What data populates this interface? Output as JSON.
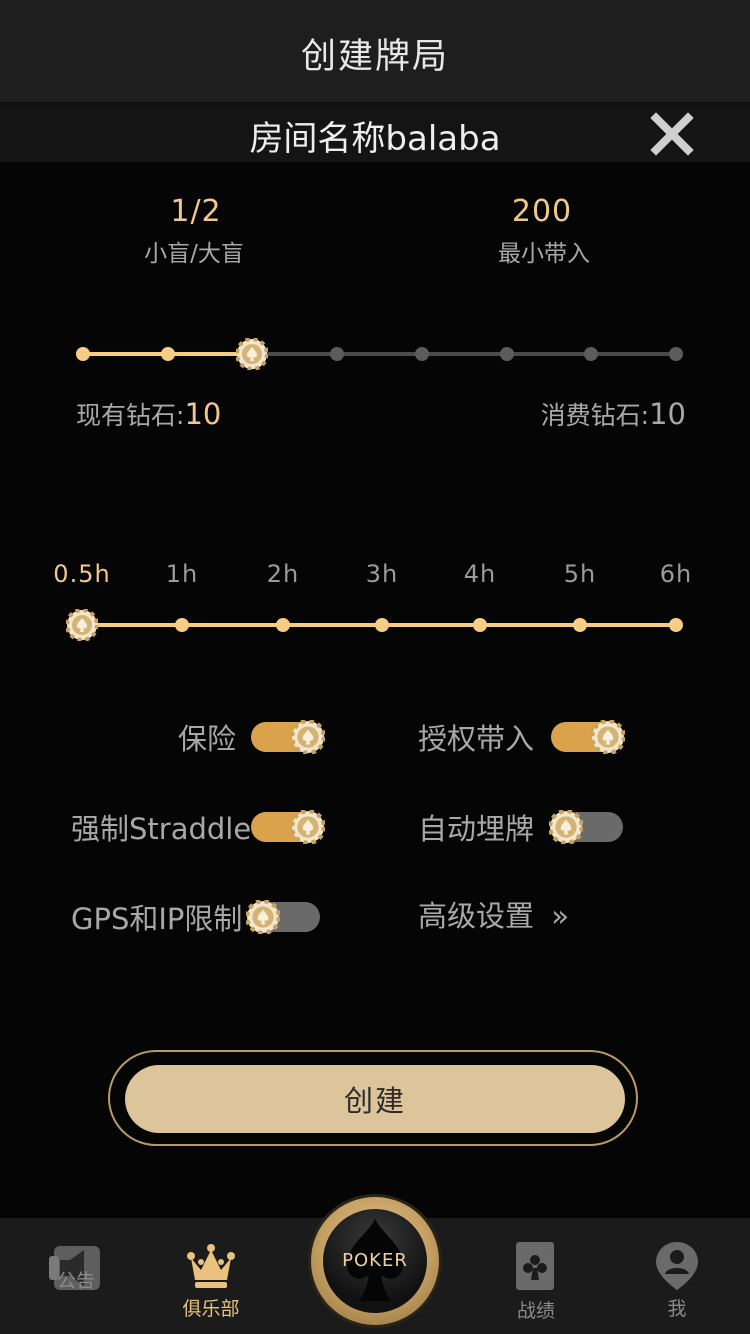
{
  "header": {
    "title": "创建牌局"
  },
  "room": {
    "title": "房间名称balaba",
    "close_icon": "close-icon"
  },
  "stats": {
    "blind_value": "1/2",
    "blind_label": "小盲/大盲",
    "buyin_value": "200",
    "buyin_label": "最小带入"
  },
  "blind_slider": {
    "steps": 8,
    "selected_index": 2
  },
  "diamonds": {
    "have_label": "现有钻石:",
    "have_value": "10",
    "cost_label": "消费钻石:",
    "cost_value": "10"
  },
  "duration": {
    "ticks": [
      "0.5h",
      "1h",
      "2h",
      "3h",
      "4h",
      "5h",
      "6h"
    ],
    "selected_index": 0
  },
  "options": {
    "insurance": {
      "label": "保险",
      "on": true
    },
    "auth_buyin": {
      "label": "授权带入",
      "on": true
    },
    "straddle": {
      "label": "强制Straddle",
      "on": true
    },
    "auto_bury": {
      "label": "自动埋牌",
      "on": false
    },
    "gps_ip": {
      "label": "GPS和IP限制",
      "on": false
    },
    "advanced": {
      "label": "高级设置",
      "arrow": "»"
    }
  },
  "create_button": {
    "label": "创建"
  },
  "tabs": [
    {
      "label": "公告",
      "icon": "megaphone-icon",
      "active": false
    },
    {
      "label": "俱乐部",
      "icon": "crown-icon",
      "active": true
    },
    {
      "label": "POKER",
      "icon": "spade-icon",
      "active": false
    },
    {
      "label": "战绩",
      "icon": "club-card-icon",
      "active": false
    },
    {
      "label": "我",
      "icon": "user-icon",
      "active": false
    }
  ],
  "colors": {
    "accent": "#f0c98a",
    "toggle_on": "#d9a24b",
    "toggle_off": "#6a6a6a",
    "button": "#dcc59a"
  }
}
